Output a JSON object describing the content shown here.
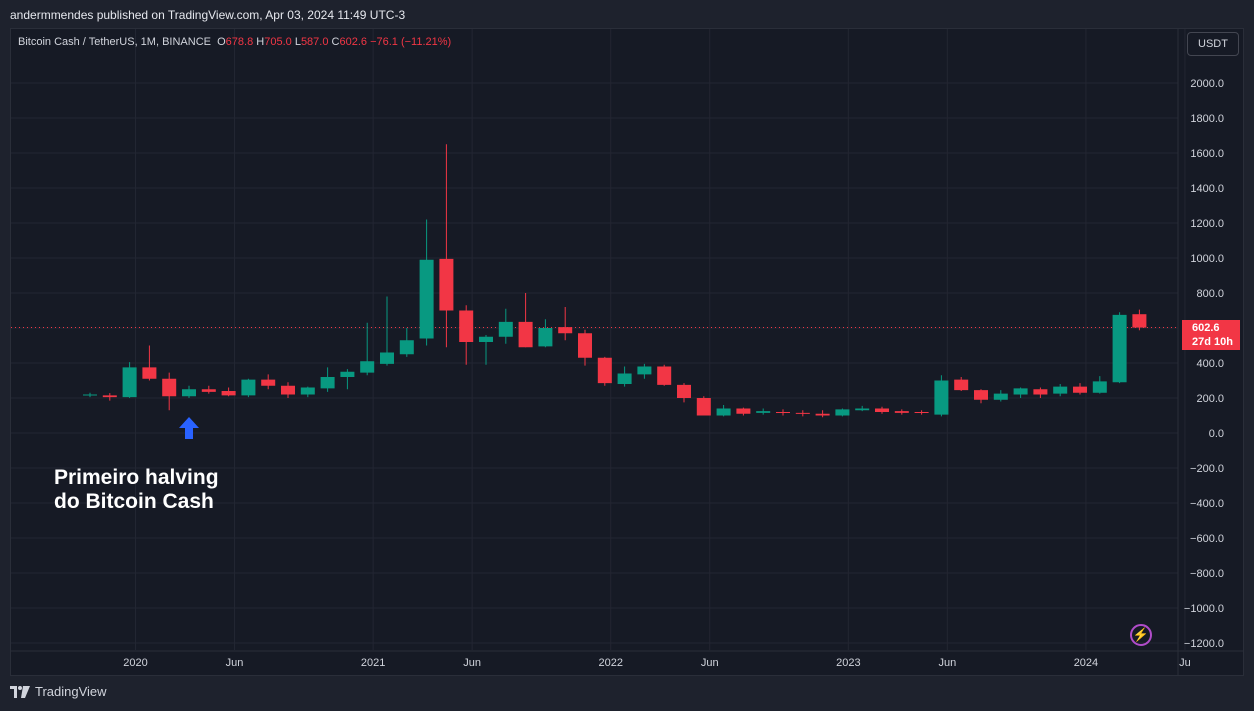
{
  "header": {
    "publish_text": "andermmendes published on TradingView.com, Apr 03, 2024 11:49 UTC-3"
  },
  "legend": {
    "symbol": "Bitcoin Cash / TetherUS, 1M, BINANCE",
    "o_label": "O",
    "o_value": "678.8",
    "h_label": "H",
    "h_value": "705.0",
    "l_label": "L",
    "l_value": "587.0",
    "c_label": "C",
    "c_value": "602.6",
    "change": "−76.1 (−11.21%)"
  },
  "currency_button": "USDT",
  "price_tag": {
    "price": "602.6",
    "countdown": "27d 10h"
  },
  "annotation": {
    "line1": "Primeiro halving",
    "line2": "do Bitcoin Cash"
  },
  "footer": {
    "brand": "TradingView",
    "logo_icon": "tradingview-logo-icon"
  },
  "colors": {
    "up": "#089981",
    "down": "#f23645",
    "background": "#161a25",
    "grid": "#232632",
    "arrow": "#2962ff",
    "last_price_line": "#f23645"
  },
  "chart_data": {
    "type": "candlestick",
    "title": "Bitcoin Cash / TetherUS, 1M, BINANCE",
    "ylim": [
      -1200,
      2000
    ],
    "y_ticks": [
      "2000.0",
      "1800.0",
      "1600.0",
      "1400.0",
      "1200.0",
      "1000.0",
      "800.0",
      "600.0",
      "400.0",
      "200.0",
      "0.0",
      "−200.0",
      "−400.0",
      "−600.0",
      "−800.0",
      "−1000.0",
      "−1200.0"
    ],
    "y_tick_values": [
      2000,
      1800,
      1600,
      1400,
      1200,
      1000,
      800,
      600,
      400,
      200,
      0,
      -200,
      -400,
      -600,
      -800,
      -1000,
      -1200
    ],
    "x_ticks": [
      {
        "label": "2020",
        "index": 2.3
      },
      {
        "label": "Jun",
        "index": 7.3
      },
      {
        "label": "2021",
        "index": 14.3
      },
      {
        "label": "Jun",
        "index": 19.3
      },
      {
        "label": "2022",
        "index": 26.3
      },
      {
        "label": "Jun",
        "index": 31.3
      },
      {
        "label": "2023",
        "index": 38.3
      },
      {
        "label": "Jun",
        "index": 43.3
      },
      {
        "label": "2024",
        "index": 50.3
      },
      {
        "label": "Ju",
        "index": 55.3
      }
    ],
    "last_price": 602.6,
    "arrow_index": 5,
    "candles": [
      {
        "date": "2019-10",
        "o": 215,
        "h": 230,
        "l": 205,
        "c": 220
      },
      {
        "date": "2019-11",
        "o": 215,
        "h": 228,
        "l": 185,
        "c": 205
      },
      {
        "date": "2019-12",
        "o": 205,
        "h": 405,
        "l": 200,
        "c": 375
      },
      {
        "date": "2020-01",
        "o": 375,
        "h": 500,
        "l": 300,
        "c": 310
      },
      {
        "date": "2020-02",
        "o": 310,
        "h": 345,
        "l": 130,
        "c": 210
      },
      {
        "date": "2020-03",
        "o": 210,
        "h": 270,
        "l": 200,
        "c": 250
      },
      {
        "date": "2020-04",
        "o": 250,
        "h": 270,
        "l": 225,
        "c": 235
      },
      {
        "date": "2020-05",
        "o": 240,
        "h": 260,
        "l": 210,
        "c": 215
      },
      {
        "date": "2020-06",
        "o": 215,
        "h": 310,
        "l": 205,
        "c": 305
      },
      {
        "date": "2020-07",
        "o": 305,
        "h": 335,
        "l": 250,
        "c": 270
      },
      {
        "date": "2020-08",
        "o": 270,
        "h": 290,
        "l": 200,
        "c": 220
      },
      {
        "date": "2020-09",
        "o": 220,
        "h": 265,
        "l": 205,
        "c": 260
      },
      {
        "date": "2020-10",
        "o": 255,
        "h": 375,
        "l": 235,
        "c": 320
      },
      {
        "date": "2020-11",
        "o": 320,
        "h": 365,
        "l": 250,
        "c": 350
      },
      {
        "date": "2020-12",
        "o": 345,
        "h": 630,
        "l": 330,
        "c": 410
      },
      {
        "date": "2021-01",
        "o": 395,
        "h": 780,
        "l": 385,
        "c": 460
      },
      {
        "date": "2021-02",
        "o": 450,
        "h": 600,
        "l": 435,
        "c": 530
      },
      {
        "date": "2021-03",
        "o": 540,
        "h": 1220,
        "l": 500,
        "c": 990
      },
      {
        "date": "2021-04",
        "o": 995,
        "h": 1650,
        "l": 490,
        "c": 700
      },
      {
        "date": "2021-05",
        "o": 700,
        "h": 730,
        "l": 390,
        "c": 520
      },
      {
        "date": "2021-06",
        "o": 520,
        "h": 560,
        "l": 390,
        "c": 550
      },
      {
        "date": "2021-07",
        "o": 550,
        "h": 710,
        "l": 510,
        "c": 635
      },
      {
        "date": "2021-08",
        "o": 635,
        "h": 800,
        "l": 490,
        "c": 490
      },
      {
        "date": "2021-09",
        "o": 495,
        "h": 650,
        "l": 490,
        "c": 600
      },
      {
        "date": "2021-10",
        "o": 605,
        "h": 720,
        "l": 530,
        "c": 570
      },
      {
        "date": "2021-11",
        "o": 570,
        "h": 590,
        "l": 385,
        "c": 430
      },
      {
        "date": "2021-12",
        "o": 430,
        "h": 435,
        "l": 270,
        "c": 285
      },
      {
        "date": "2022-01",
        "o": 280,
        "h": 380,
        "l": 265,
        "c": 340
      },
      {
        "date": "2022-02",
        "o": 335,
        "h": 395,
        "l": 310,
        "c": 380
      },
      {
        "date": "2022-03",
        "o": 380,
        "h": 390,
        "l": 270,
        "c": 275
      },
      {
        "date": "2022-04",
        "o": 275,
        "h": 285,
        "l": 175,
        "c": 200
      },
      {
        "date": "2022-05",
        "o": 200,
        "h": 210,
        "l": 100,
        "c": 100
      },
      {
        "date": "2022-06",
        "o": 100,
        "h": 160,
        "l": 95,
        "c": 140
      },
      {
        "date": "2022-07",
        "o": 140,
        "h": 145,
        "l": 100,
        "c": 110
      },
      {
        "date": "2022-08",
        "o": 115,
        "h": 140,
        "l": 105,
        "c": 125
      },
      {
        "date": "2022-09",
        "o": 120,
        "h": 135,
        "l": 100,
        "c": 115
      },
      {
        "date": "2022-10",
        "o": 115,
        "h": 130,
        "l": 95,
        "c": 110
      },
      {
        "date": "2022-11",
        "o": 110,
        "h": 130,
        "l": 90,
        "c": 100
      },
      {
        "date": "2022-12",
        "o": 100,
        "h": 140,
        "l": 95,
        "c": 135
      },
      {
        "date": "2023-01",
        "o": 130,
        "h": 155,
        "l": 125,
        "c": 140
      },
      {
        "date": "2023-02",
        "o": 140,
        "h": 150,
        "l": 110,
        "c": 120
      },
      {
        "date": "2023-03",
        "o": 125,
        "h": 135,
        "l": 105,
        "c": 115
      },
      {
        "date": "2023-04",
        "o": 120,
        "h": 130,
        "l": 105,
        "c": 115
      },
      {
        "date": "2023-05",
        "o": 105,
        "h": 330,
        "l": 95,
        "c": 300
      },
      {
        "date": "2023-06",
        "o": 305,
        "h": 320,
        "l": 240,
        "c": 245
      },
      {
        "date": "2023-07",
        "o": 245,
        "h": 250,
        "l": 170,
        "c": 190
      },
      {
        "date": "2023-08",
        "o": 190,
        "h": 245,
        "l": 180,
        "c": 225
      },
      {
        "date": "2023-09",
        "o": 220,
        "h": 260,
        "l": 200,
        "c": 255
      },
      {
        "date": "2023-10",
        "o": 250,
        "h": 260,
        "l": 200,
        "c": 220
      },
      {
        "date": "2023-11",
        "o": 225,
        "h": 280,
        "l": 210,
        "c": 265
      },
      {
        "date": "2023-12",
        "o": 265,
        "h": 285,
        "l": 220,
        "c": 230
      },
      {
        "date": "2024-01",
        "o": 230,
        "h": 325,
        "l": 225,
        "c": 295
      },
      {
        "date": "2024-02",
        "o": 290,
        "h": 690,
        "l": 285,
        "c": 675
      },
      {
        "date": "2024-03",
        "o": 678.8,
        "h": 705,
        "l": 587,
        "c": 602.6
      }
    ]
  }
}
